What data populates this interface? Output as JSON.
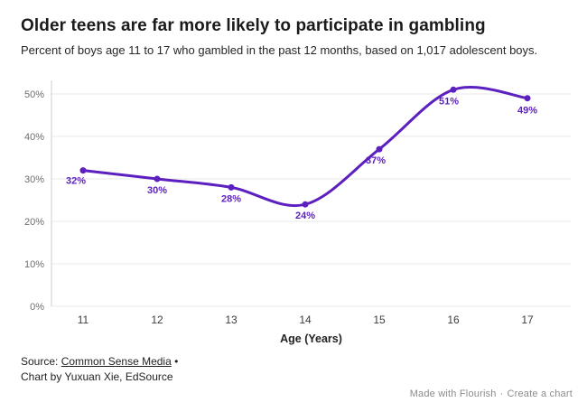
{
  "header": {
    "title": "Older teens are far more likely to participate in gambling",
    "subtitle": "Percent of boys age 11 to 17 who gambled in the past 12 months, based on 1,017 adolescent boys."
  },
  "chart_data": {
    "type": "line",
    "x": [
      11,
      12,
      13,
      14,
      15,
      16,
      17
    ],
    "categories": [
      "11",
      "12",
      "13",
      "14",
      "15",
      "16",
      "17"
    ],
    "values": [
      32,
      30,
      28,
      24,
      37,
      51,
      49
    ],
    "point_labels": [
      "32%",
      "30%",
      "28%",
      "24%",
      "37%",
      "51%",
      "49%"
    ],
    "title": "Older teens are far more likely to participate in gambling",
    "xlabel": "Age (Years)",
    "ylabel": "",
    "ylim": [
      0,
      55
    ],
    "yticks": [
      0,
      10,
      20,
      30,
      40,
      50
    ],
    "ytick_labels": [
      "0%",
      "10%",
      "20%",
      "30%",
      "40%",
      "50%"
    ],
    "grid": true,
    "legend": "none",
    "smooth": true,
    "line_color": "#5c1fc0",
    "label_color": "#5c1fc0",
    "grid_color": "#e8e8e8",
    "axis_line_color": "#cccccc",
    "ytick_color": "#6e6e6e",
    "xtick_color": "#3d3d3d",
    "xlabel_color": "#222222"
  },
  "footer": {
    "source_prefix": "Source: ",
    "source_link": "Common Sense Media",
    "source_suffix": " •",
    "credit_line": "Chart by Yuxuan Xie, EdSource",
    "flourish_made_with": "Made with Flourish",
    "flourish_separator": "·",
    "flourish_create": "Create a chart"
  }
}
